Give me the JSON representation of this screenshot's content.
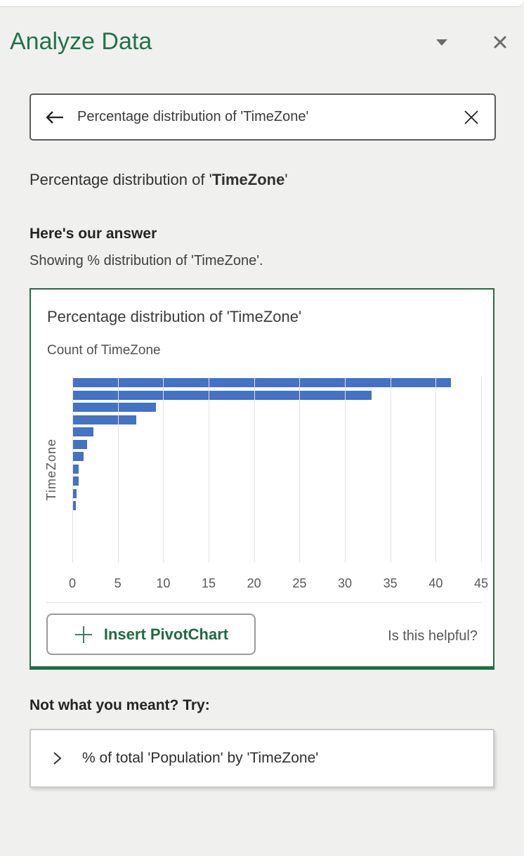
{
  "pane": {
    "title": "Analyze Data"
  },
  "icons": {
    "chevron_down": "dropdown triangle",
    "close": "close X",
    "back_arrow": "left arrow",
    "clear": "clear X",
    "plus": "plus sign",
    "chevron_right": "right angle chevron"
  },
  "search": {
    "value": "Percentage distribution of 'TimeZone'"
  },
  "question": {
    "prefix": "Percentage distribution of '",
    "field": "TimeZone",
    "suffix": "'"
  },
  "answer": {
    "heading": "Here's our answer",
    "subtext": "Showing % distribution of 'TimeZone'."
  },
  "card": {
    "insert_button_label": "Insert PivotChart",
    "helpful_label": "Is this helpful?"
  },
  "chart_data": {
    "type": "bar",
    "orientation": "horizontal",
    "title": "Percentage distribution of 'TimeZone'",
    "subtitle": "Count of TimeZone",
    "ylabel": "TimeZone",
    "xlabel": "",
    "values": [
      41.7,
      32.9,
      9.2,
      7.0,
      2.3,
      1.6,
      1.2,
      0.7,
      0.7,
      0.5,
      0.4
    ],
    "xlim": [
      0,
      45
    ],
    "xticks": [
      0,
      5,
      10,
      15,
      20,
      25,
      30,
      35,
      40,
      45
    ],
    "grid": true,
    "legend": "none",
    "bar_color": "#4472c4"
  },
  "suggestions": {
    "heading": "Not what you meant? Try:",
    "items": [
      {
        "label": "% of total 'Population' by 'TimeZone'"
      }
    ]
  },
  "colors": {
    "accent_green": "#217346",
    "bar_blue": "#4472c4",
    "pane_background": "#f0f0ef"
  }
}
